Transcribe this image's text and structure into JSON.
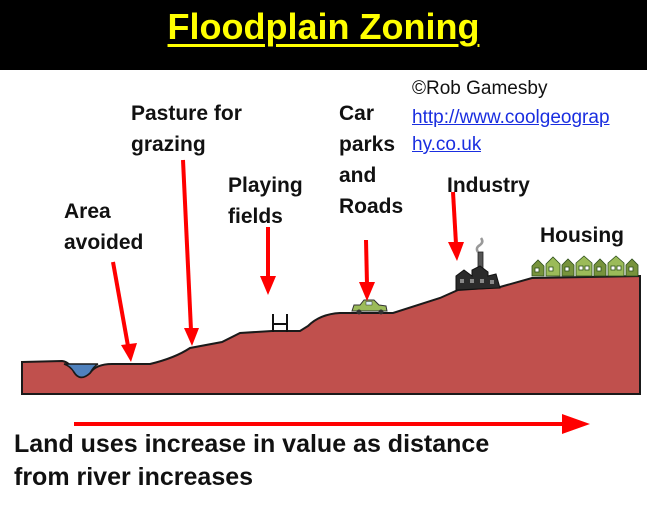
{
  "title": "Floodplain Zoning",
  "credit": "©Rob Gamesby",
  "link_line1": "http://www.coolgeograp",
  "link_line2": "hy.co.uk",
  "labels": {
    "area_avoided_1": "Area",
    "area_avoided_2": "avoided",
    "pasture_1": "Pasture for",
    "pasture_2": "grazing",
    "playing_1": "Playing",
    "playing_2": "fields",
    "car_1": "Car",
    "car_2": "parks",
    "car_3": "and",
    "car_4": "Roads",
    "industry": "Industry",
    "housing": "Housing"
  },
  "caption_line1": "Land uses increase in value as distance",
  "caption_line2": "from river increases",
  "colors": {
    "title_bg": "#000000",
    "title_text": "#ffff00",
    "ground": "#c0504d",
    "arrow": "#ff0000",
    "river": "#4f81bd",
    "link": "#1a2ee0"
  }
}
